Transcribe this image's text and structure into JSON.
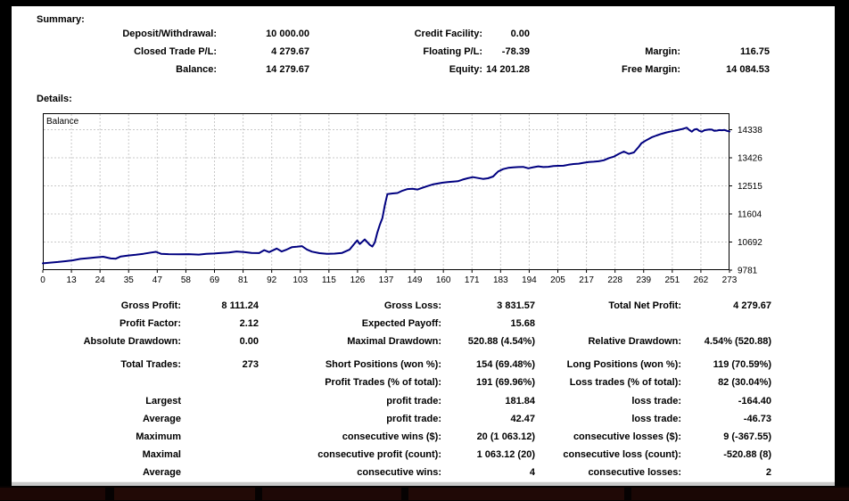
{
  "summary": {
    "title": "Summary:",
    "rows": [
      [
        {
          "c": "ll",
          "t": "Deposit/Withdrawal:"
        },
        {
          "c": "lv",
          "t": "10 000.00"
        },
        {
          "c": "ml",
          "t": "Credit Facility:"
        },
        {
          "c": "mv",
          "t": "0.00"
        }
      ],
      [
        {
          "c": "ll",
          "t": "Closed Trade P/L:"
        },
        {
          "c": "lv",
          "t": "4 279.67"
        },
        {
          "c": "ml",
          "t": "Floating P/L:"
        },
        {
          "c": "mv",
          "t": "-78.39"
        },
        {
          "c": "rl",
          "t": "Margin:"
        },
        {
          "c": "rv",
          "t": "116.75"
        }
      ],
      [
        {
          "c": "ll",
          "t": "Balance:"
        },
        {
          "c": "lv",
          "t": "14 279.67"
        },
        {
          "c": "ml",
          "t": "Equity:"
        },
        {
          "c": "mv",
          "t": "14 201.28"
        },
        {
          "c": "rl",
          "t": "Free Margin:"
        },
        {
          "c": "rv",
          "t": "14 084.53"
        }
      ]
    ]
  },
  "details": {
    "title": "Details:"
  },
  "chart_data": {
    "type": "line",
    "title": "Balance",
    "legend": [
      "Balance"
    ],
    "legend_position": "top-left-inside",
    "grid": true,
    "grid_color": "#c8c8c8",
    "line_color": "#000080",
    "axis_color": "#000000",
    "xlim": [
      0,
      273
    ],
    "ylim": [
      9781,
      14873
    ],
    "x_ticks": [
      0,
      13,
      24,
      35,
      47,
      58,
      69,
      81,
      92,
      103,
      115,
      126,
      137,
      149,
      160,
      171,
      183,
      194,
      205,
      217,
      228,
      239,
      251,
      262,
      273
    ],
    "y_ticks": [
      9781,
      10692,
      11604,
      12515,
      13426,
      14338
    ],
    "series": [
      {
        "name": "Balance",
        "points": [
          [
            0,
            10000
          ],
          [
            3,
            10025
          ],
          [
            6,
            10045
          ],
          [
            9,
            10070
          ],
          [
            12,
            10100
          ],
          [
            15,
            10145
          ],
          [
            18,
            10170
          ],
          [
            21,
            10195
          ],
          [
            24,
            10215
          ],
          [
            27,
            10160
          ],
          [
            29,
            10150
          ],
          [
            31,
            10225
          ],
          [
            34,
            10255
          ],
          [
            37,
            10280
          ],
          [
            40,
            10310
          ],
          [
            43,
            10350
          ],
          [
            45,
            10375
          ],
          [
            47,
            10310
          ],
          [
            50,
            10300
          ],
          [
            54,
            10295
          ],
          [
            58,
            10300
          ],
          [
            62,
            10285
          ],
          [
            65,
            10310
          ],
          [
            68,
            10320
          ],
          [
            71,
            10340
          ],
          [
            74,
            10350
          ],
          [
            77,
            10385
          ],
          [
            80,
            10365
          ],
          [
            83,
            10340
          ],
          [
            86,
            10335
          ],
          [
            88,
            10430
          ],
          [
            90,
            10365
          ],
          [
            93,
            10480
          ],
          [
            95,
            10385
          ],
          [
            97,
            10450
          ],
          [
            99,
            10525
          ],
          [
            101,
            10540
          ],
          [
            103,
            10560
          ],
          [
            105,
            10450
          ],
          [
            107,
            10380
          ],
          [
            110,
            10330
          ],
          [
            113,
            10310
          ],
          [
            116,
            10315
          ],
          [
            119,
            10340
          ],
          [
            122,
            10450
          ],
          [
            124,
            10650
          ],
          [
            125,
            10745
          ],
          [
            126,
            10630
          ],
          [
            128,
            10775
          ],
          [
            130,
            10600
          ],
          [
            131,
            10545
          ],
          [
            132,
            10680
          ],
          [
            133,
            11000
          ],
          [
            134,
            11250
          ],
          [
            135,
            11470
          ],
          [
            136,
            11900
          ],
          [
            137,
            12250
          ],
          [
            139,
            12270
          ],
          [
            141,
            12285
          ],
          [
            143,
            12360
          ],
          [
            145,
            12410
          ],
          [
            147,
            12420
          ],
          [
            149,
            12395
          ],
          [
            151,
            12455
          ],
          [
            153,
            12510
          ],
          [
            155,
            12560
          ],
          [
            157,
            12590
          ],
          [
            159,
            12620
          ],
          [
            161,
            12640
          ],
          [
            163,
            12650
          ],
          [
            165,
            12665
          ],
          [
            167,
            12720
          ],
          [
            169,
            12765
          ],
          [
            171,
            12800
          ],
          [
            173,
            12770
          ],
          [
            175,
            12740
          ],
          [
            177,
            12760
          ],
          [
            179,
            12820
          ],
          [
            181,
            12980
          ],
          [
            183,
            13060
          ],
          [
            185,
            13100
          ],
          [
            187,
            13115
          ],
          [
            189,
            13125
          ],
          [
            191,
            13130
          ],
          [
            193,
            13085
          ],
          [
            195,
            13120
          ],
          [
            197,
            13150
          ],
          [
            199,
            13125
          ],
          [
            201,
            13135
          ],
          [
            203,
            13160
          ],
          [
            205,
            13165
          ],
          [
            207,
            13170
          ],
          [
            209,
            13200
          ],
          [
            211,
            13225
          ],
          [
            213,
            13235
          ],
          [
            215,
            13265
          ],
          [
            217,
            13290
          ],
          [
            219,
            13300
          ],
          [
            221,
            13315
          ],
          [
            223,
            13345
          ],
          [
            225,
            13415
          ],
          [
            227,
            13465
          ],
          [
            229,
            13555
          ],
          [
            231,
            13630
          ],
          [
            233,
            13555
          ],
          [
            235,
            13600
          ],
          [
            237,
            13790
          ],
          [
            238,
            13900
          ],
          [
            240,
            14000
          ],
          [
            242,
            14090
          ],
          [
            244,
            14150
          ],
          [
            246,
            14205
          ],
          [
            248,
            14250
          ],
          [
            250,
            14285
          ],
          [
            252,
            14320
          ],
          [
            254,
            14355
          ],
          [
            256,
            14405
          ],
          [
            257,
            14330
          ],
          [
            258,
            14275
          ],
          [
            259,
            14340
          ],
          [
            260,
            14360
          ],
          [
            261,
            14300
          ],
          [
            262,
            14275
          ],
          [
            263,
            14320
          ],
          [
            264,
            14335
          ],
          [
            265,
            14345
          ],
          [
            266,
            14340
          ],
          [
            267,
            14300
          ],
          [
            268,
            14310
          ],
          [
            269,
            14325
          ],
          [
            270,
            14320
          ],
          [
            271,
            14330
          ],
          [
            272,
            14300
          ],
          [
            273,
            14280
          ]
        ]
      }
    ]
  },
  "stats": {
    "rows": [
      [
        {
          "c": "ll",
          "t": "Gross Profit:"
        },
        {
          "c": "lv",
          "t": "8 111.24"
        },
        {
          "c": "ml",
          "t": "Gross Loss:"
        },
        {
          "c": "mv",
          "t": "3 831.57"
        },
        {
          "c": "rl",
          "t": "Total Net Profit:"
        },
        {
          "c": "rv",
          "t": "4 279.67"
        }
      ],
      [
        {
          "c": "ll",
          "t": "Profit Factor:"
        },
        {
          "c": "lv",
          "t": "2.12"
        },
        {
          "c": "ml",
          "t": "Expected Payoff:"
        },
        {
          "c": "mv",
          "t": "15.68"
        }
      ],
      [
        {
          "c": "ll",
          "t": "Absolute Drawdown:"
        },
        {
          "c": "lv",
          "t": "0.00"
        },
        {
          "c": "ml",
          "t": "Maximal Drawdown:"
        },
        {
          "c": "mv",
          "t": "520.88 (4.54%)"
        },
        {
          "c": "rl",
          "t": "Relative Drawdown:"
        },
        {
          "c": "rv",
          "t": "4.54% (520.88)"
        }
      ],
      [
        {
          "c": "ll",
          "t": "Total Trades:"
        },
        {
          "c": "lv",
          "t": "273"
        },
        {
          "c": "ml",
          "t": "Short Positions (won %):"
        },
        {
          "c": "mv",
          "t": "154 (69.48%)"
        },
        {
          "c": "rl",
          "t": "Long Positions (won %):"
        },
        {
          "c": "rv",
          "t": "119 (70.59%)"
        }
      ],
      [
        {
          "c": "ml",
          "t": "Profit Trades (% of total):"
        },
        {
          "c": "mv",
          "t": "191 (69.96%)"
        },
        {
          "c": "rl",
          "t": "Loss trades (% of total):"
        },
        {
          "c": "rv",
          "t": "82 (30.04%)"
        }
      ],
      [
        {
          "c": "ll",
          "t": "Largest"
        },
        {
          "c": "ml",
          "t": "profit trade:"
        },
        {
          "c": "mv",
          "t": "181.84"
        },
        {
          "c": "rl",
          "t": "loss trade:"
        },
        {
          "c": "rv",
          "t": "-164.40"
        }
      ],
      [
        {
          "c": "ll",
          "t": "Average"
        },
        {
          "c": "ml",
          "t": "profit trade:"
        },
        {
          "c": "mv",
          "t": "42.47"
        },
        {
          "c": "rl",
          "t": "loss trade:"
        },
        {
          "c": "rv",
          "t": "-46.73"
        }
      ],
      [
        {
          "c": "ll",
          "t": "Maximum"
        },
        {
          "c": "ml",
          "t": "consecutive wins ($):"
        },
        {
          "c": "mv",
          "t": "20 (1 063.12)"
        },
        {
          "c": "rl",
          "t": "consecutive losses ($):"
        },
        {
          "c": "rv",
          "t": "9 (-367.55)"
        }
      ],
      [
        {
          "c": "ll",
          "t": "Maximal"
        },
        {
          "c": "ml",
          "t": "consecutive profit (count):"
        },
        {
          "c": "mv",
          "t": "1 063.12 (20)"
        },
        {
          "c": "rl",
          "t": "consecutive loss (count):"
        },
        {
          "c": "rv",
          "t": "-520.88 (8)"
        }
      ],
      [
        {
          "c": "ll",
          "t": "Average"
        },
        {
          "c": "ml",
          "t": "consecutive wins:"
        },
        {
          "c": "mv",
          "t": "4"
        },
        {
          "c": "rl",
          "t": "consecutive losses:"
        },
        {
          "c": "rv",
          "t": "2"
        }
      ]
    ]
  },
  "background": {
    "shadow_color": "#000000",
    "strip_segment_color": "#1e0806"
  }
}
